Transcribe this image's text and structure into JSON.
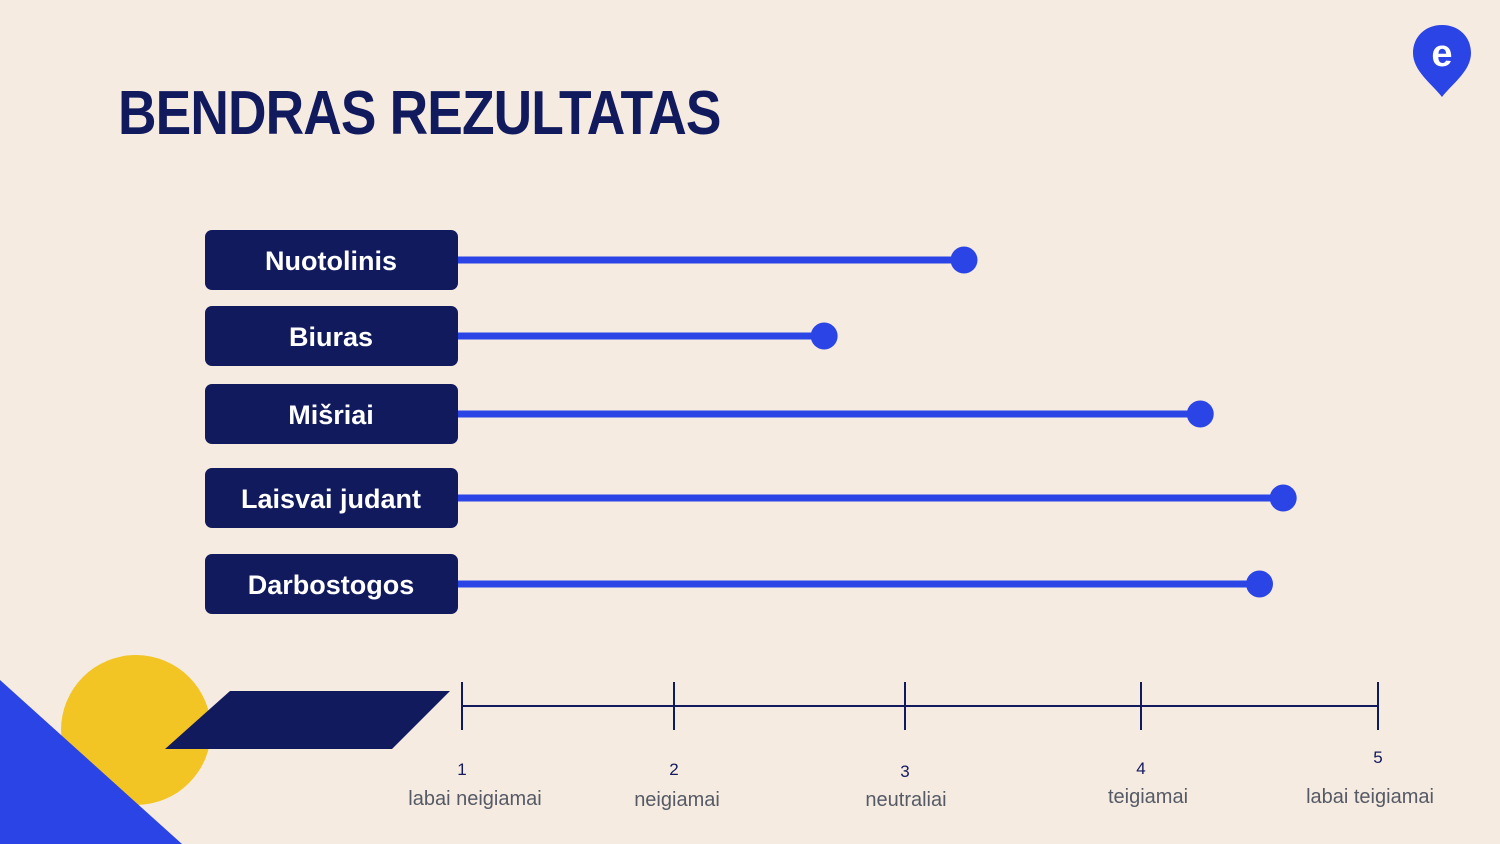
{
  "title": "BENDRAS REZULTATAS",
  "chart_data": {
    "type": "bar",
    "orientation": "horizontal",
    "style": "lollipop",
    "categories": [
      "Nuotolinis",
      "Biuras",
      "Mišriai",
      "Laisvai judant",
      "Darbostogos"
    ],
    "values": [
      3.25,
      2.65,
      4.25,
      4.6,
      4.5
    ],
    "xlim": [
      1,
      5
    ],
    "ticks": [
      {
        "value": "1",
        "label": "labai neigiamai"
      },
      {
        "value": "2",
        "label": "neigiamai"
      },
      {
        "value": "3",
        "label": "neutraliai"
      },
      {
        "value": "4",
        "label": "teigiamai"
      },
      {
        "value": "5",
        "label": "labai teigiamai"
      }
    ],
    "colors": {
      "bar": "#2B44E6",
      "label_bg": "#121A5E",
      "axis": "#121A5E"
    }
  },
  "logo_letter": "e",
  "decor_colors": {
    "yellow": "#F2C424",
    "blue": "#2B44E6",
    "navy": "#121A5E"
  }
}
